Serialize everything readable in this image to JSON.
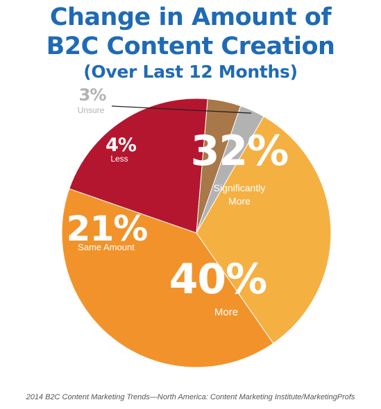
{
  "title": {
    "line1": "Change in Amount of",
    "line2": "B2C Content Creation",
    "subtitle": "(Over Last 12 Months)"
  },
  "source": "2014 B2C Content Marketing Trends—North America: Content Marketing Institute/MarketingProfs",
  "chart_data": {
    "type": "pie",
    "title": "Change in Amount of B2C Content Creation",
    "subtitle": "(Over Last 12 Months)",
    "slices": [
      {
        "percent_label": "32%",
        "label_lines": [
          "Significantly",
          "More"
        ],
        "value": 32,
        "color": "#f5b042",
        "text_color": "#ffffff"
      },
      {
        "percent_label": "40%",
        "label_lines": [
          "More"
        ],
        "value": 40,
        "color": "#f1932a",
        "text_color": "#ffffff"
      },
      {
        "percent_label": "21%",
        "label_lines": [
          "Same Amount"
        ],
        "value": 21,
        "color": "#b5162f",
        "text_color": "#ffffff"
      },
      {
        "percent_label": "4%",
        "label_lines": [
          "Less"
        ],
        "value": 4,
        "color": "#a87849",
        "text_color": "#ffffff"
      },
      {
        "percent_label": "3%",
        "label_lines": [
          "Unsure"
        ],
        "value": 3,
        "color": "#b2b2b2",
        "text_color": "#b2b2b2"
      }
    ]
  }
}
